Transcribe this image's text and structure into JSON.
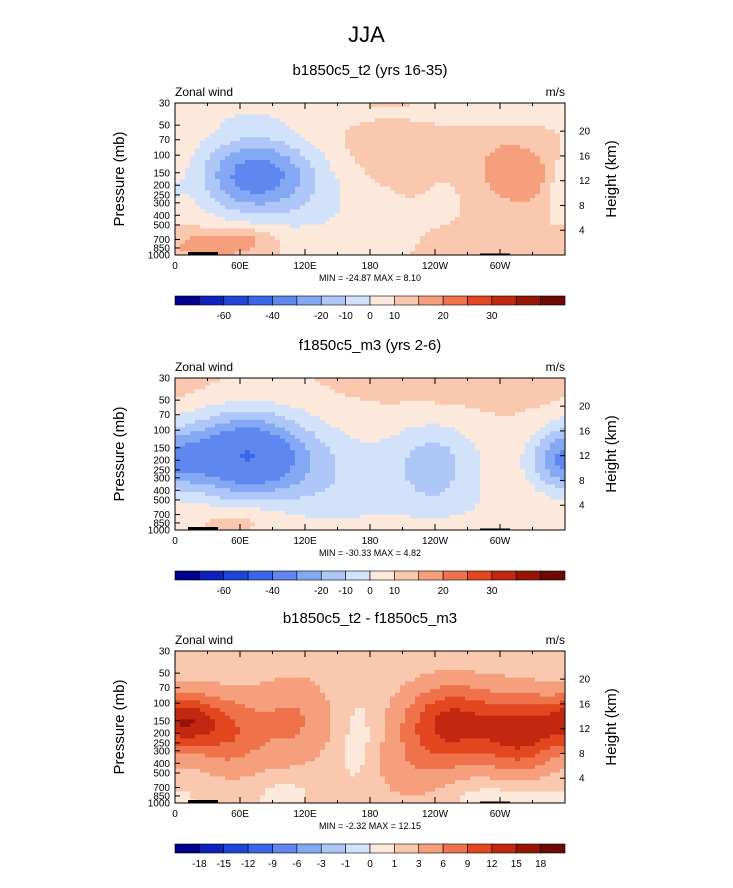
{
  "main_title": "JJA",
  "colors": {
    "neg": [
      "#00008c",
      "#0e22bd",
      "#2145d6",
      "#3867e8",
      "#5e88f0",
      "#85a8f4",
      "#aec7f8",
      "#d3e2fb"
    ],
    "pos": [
      "#fde9dc",
      "#fac8ae",
      "#f69f7c",
      "#f0724a",
      "#e24720",
      "#c1280f",
      "#961508",
      "#6e0804"
    ]
  },
  "chart_data": [
    {
      "type": "heatmap",
      "title": "b1850c5_t2 (yrs 16-35)",
      "left_label": "Zonal wind",
      "right_label": "m/s",
      "ylabel": "Pressure (mb)",
      "ylabel_right": "Height (km)",
      "x_ticks": [
        "0",
        "60E",
        "120E",
        "180",
        "120W",
        "60W"
      ],
      "y_ticks": [
        "30",
        "50",
        "70",
        "100",
        "150",
        "200",
        "250",
        "300",
        "400",
        "500",
        "700",
        "850",
        "1000"
      ],
      "height_ticks": [
        "20",
        "16",
        "12",
        "8",
        "4"
      ],
      "stats": "MIN = -24.87   MAX =  8.10",
      "colorbar_labels": [
        "-60",
        "-40",
        "-20",
        "-10",
        "0",
        "10",
        "20",
        "30"
      ],
      "features": [
        {
          "lon": 75,
          "p": 160,
          "lw": 55,
          "pw": 0.95,
          "v": -24
        },
        {
          "lon": 150,
          "p": 400,
          "lw": 55,
          "pw": 1.2,
          "v": -4
        },
        {
          "lon": 255,
          "p": 190,
          "lw": 30,
          "pw": 0.8,
          "v": -2
        },
        {
          "lon": 310,
          "p": 140,
          "lw": 42,
          "pw": 0.8,
          "v": 7
        },
        {
          "lon": 335,
          "p": 190,
          "lw": 30,
          "pw": 0.6,
          "v": 4
        },
        {
          "lon": 200,
          "p": 100,
          "lw": 55,
          "pw": 0.8,
          "v": 3
        },
        {
          "lon": 355,
          "p": 220,
          "lw": 15,
          "pw": 0.6,
          "v": -6
        },
        {
          "lon": 30,
          "p": 800,
          "lw": 35,
          "pw": 0.35,
          "v": 8
        },
        {
          "lon": 70,
          "p": 700,
          "lw": 25,
          "pw": 0.3,
          "v": 6
        },
        {
          "lon": 15,
          "p": 40,
          "lw": 200,
          "pw": 0.3,
          "v": -3
        }
      ]
    },
    {
      "type": "heatmap",
      "title": "f1850c5_m3 (yrs 2-6)",
      "left_label": "Zonal wind",
      "right_label": "m/s",
      "ylabel": "Pressure (mb)",
      "ylabel_right": "Height (km)",
      "x_ticks": [
        "0",
        "60E",
        "120E",
        "180",
        "120W",
        "60W"
      ],
      "y_ticks": [
        "30",
        "50",
        "70",
        "100",
        "150",
        "200",
        "250",
        "300",
        "400",
        "500",
        "700",
        "850",
        "1000"
      ],
      "height_ticks": [
        "20",
        "16",
        "12",
        "8",
        "4"
      ],
      "stats": "MIN = -30.33   MAX =  4.82",
      "colorbar_labels": [
        "-60",
        "-40",
        "-20",
        "-10",
        "0",
        "10",
        "20",
        "30"
      ],
      "features": [
        {
          "lon": 65,
          "p": 180,
          "lw": 60,
          "pw": 1.0,
          "v": -30
        },
        {
          "lon": 150,
          "p": 350,
          "lw": 60,
          "pw": 1.3,
          "v": -7
        },
        {
          "lon": 240,
          "p": 200,
          "lw": 45,
          "pw": 0.9,
          "v": -12
        },
        {
          "lon": 355,
          "p": 200,
          "lw": 30,
          "pw": 0.7,
          "v": -14
        },
        {
          "lon": 250,
          "p": 550,
          "lw": 60,
          "pw": 0.6,
          "v": -5
        },
        {
          "lon": 60,
          "p": 750,
          "lw": 35,
          "pw": 0.3,
          "v": 4
        },
        {
          "lon": 300,
          "p": 40,
          "lw": 120,
          "pw": 0.4,
          "v": 2
        }
      ]
    },
    {
      "type": "heatmap",
      "title": "b1850c5_t2 - f1850c5_m3",
      "left_label": "Zonal wind",
      "right_label": "m/s",
      "ylabel": "Pressure (mb)",
      "ylabel_right": "Height (km)",
      "x_ticks": [
        "0",
        "60E",
        "120E",
        "180",
        "120W",
        "60W"
      ],
      "y_ticks": [
        "30",
        "50",
        "70",
        "100",
        "150",
        "200",
        "250",
        "300",
        "400",
        "500",
        "700",
        "850",
        "1000"
      ],
      "height_ticks": [
        "20",
        "16",
        "12",
        "8",
        "4"
      ],
      "stats": "MIN = -2.32   MAX = 12.15",
      "colorbar_labels": [
        "-18",
        "-15",
        "-12",
        "-9",
        "-6",
        "-3",
        "-1",
        "0",
        "1",
        "3",
        "6",
        "9",
        "12",
        "15",
        "18"
      ],
      "features": [
        {
          "lon": 10,
          "p": 150,
          "lw": 30,
          "pw": 0.6,
          "v": 11
        },
        {
          "lon": 50,
          "p": 200,
          "lw": 35,
          "pw": 0.9,
          "v": 7
        },
        {
          "lon": 110,
          "p": 150,
          "lw": 35,
          "pw": 1.0,
          "v": 5
        },
        {
          "lon": 255,
          "p": 160,
          "lw": 45,
          "pw": 0.9,
          "v": 12
        },
        {
          "lon": 320,
          "p": 200,
          "lw": 35,
          "pw": 0.9,
          "v": 11
        },
        {
          "lon": 170,
          "p": 250,
          "lw": 18,
          "pw": 1.0,
          "v": -1.5
        },
        {
          "lon": 300,
          "p": 800,
          "lw": 70,
          "pw": 0.4,
          "v": -1.5
        },
        {
          "lon": 100,
          "p": 800,
          "lw": 20,
          "pw": 0.3,
          "v": -1.5
        },
        {
          "lon": 220,
          "p": 500,
          "lw": 40,
          "pw": 0.8,
          "v": 3
        }
      ]
    }
  ]
}
